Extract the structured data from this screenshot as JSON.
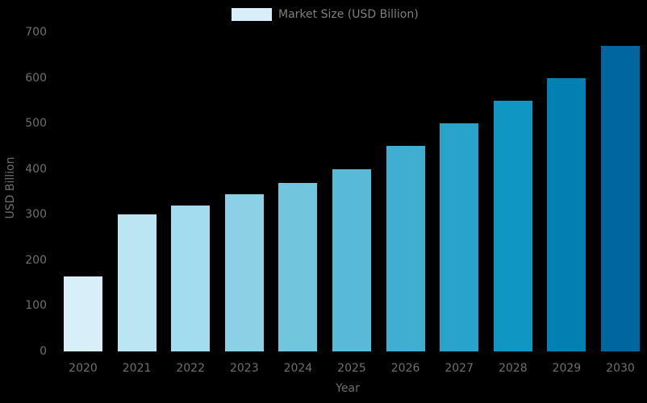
{
  "background_color": "#000000",
  "axis_text_color": "#6f6f6f",
  "legend": {
    "label": "Market Size (USD Billion)",
    "swatch_color": "#d8eef8",
    "text_color": "#7f7f7f"
  },
  "chart_data": {
    "type": "bar",
    "title": "",
    "xlabel": "Year",
    "ylabel": "USD Billion",
    "categories": [
      "2020",
      "2021",
      "2022",
      "2023",
      "2024",
      "2025",
      "2026",
      "2027",
      "2028",
      "2029",
      "2030"
    ],
    "values": [
      165,
      300,
      320,
      345,
      370,
      400,
      450,
      500,
      550,
      600,
      670
    ],
    "bar_colors": [
      "#d8eef8",
      "#bae5f1",
      "#a3dcee",
      "#8bd0e4",
      "#71c5dc",
      "#58bad7",
      "#40aed1",
      "#29a3cc",
      "#1096c3",
      "#0280b2",
      "#00679e"
    ],
    "series_name": "Market Size (USD Billion)",
    "ylim": [
      0,
      700
    ],
    "yticks": [
      0,
      100,
      200,
      300,
      400,
      500,
      600,
      700
    ],
    "grid": false,
    "legend_position": "top-center"
  }
}
